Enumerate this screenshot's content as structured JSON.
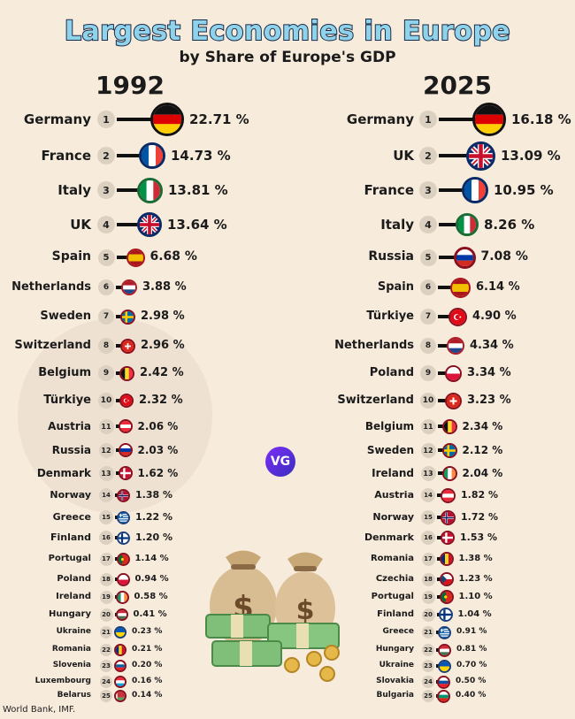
{
  "title": "Largest Economies in Europe",
  "subtitle": "by Share of Europe's GDP",
  "source": "World Bank, IMF.",
  "logo_text": "VG",
  "colors": {
    "title_fill": "#8fd3ea",
    "title_stroke": "#1b2a4a",
    "background": "#f7ebdc",
    "bar": "#111111",
    "rank_badge": "#dcd0c0"
  },
  "chart_data": [
    {
      "type": "bar",
      "title": "1992",
      "unit": "%",
      "rows": [
        {
          "rank": "1",
          "country": "Germany",
          "value": 22.71,
          "label": "22.71 %",
          "flag": "germany"
        },
        {
          "rank": "2",
          "country": "France",
          "value": 14.73,
          "label": "14.73 %",
          "flag": "france"
        },
        {
          "rank": "3",
          "country": "Italy",
          "value": 13.81,
          "label": "13.81 %",
          "flag": "italy"
        },
        {
          "rank": "4",
          "country": "UK",
          "value": 13.64,
          "label": "13.64 %",
          "flag": "uk"
        },
        {
          "rank": "5",
          "country": "Spain",
          "value": 6.68,
          "label": "6.68 %",
          "flag": "spain"
        },
        {
          "rank": "6",
          "country": "Netherlands",
          "value": 3.88,
          "label": "3.88 %",
          "flag": "netherlands"
        },
        {
          "rank": "7",
          "country": "Sweden",
          "value": 2.98,
          "label": "2.98 %",
          "flag": "sweden"
        },
        {
          "rank": "8",
          "country": "Switzerland",
          "value": 2.96,
          "label": "2.96 %",
          "flag": "switzerland"
        },
        {
          "rank": "9",
          "country": "Belgium",
          "value": 2.42,
          "label": "2.42 %",
          "flag": "belgium"
        },
        {
          "rank": "10",
          "country": "Türkiye",
          "value": 2.32,
          "label": "2.32 %",
          "flag": "turkiye"
        },
        {
          "rank": "11",
          "country": "Austria",
          "value": 2.06,
          "label": "2.06 %",
          "flag": "austria"
        },
        {
          "rank": "12",
          "country": "Russia",
          "value": 2.03,
          "label": "2.03 %",
          "flag": "russia"
        },
        {
          "rank": "13",
          "country": "Denmark",
          "value": 1.62,
          "label": "1.62 %",
          "flag": "denmark"
        },
        {
          "rank": "14",
          "country": "Norway",
          "value": 1.38,
          "label": "1.38 %",
          "flag": "norway"
        },
        {
          "rank": "15",
          "country": "Greece",
          "value": 1.22,
          "label": "1.22 %",
          "flag": "greece"
        },
        {
          "rank": "16",
          "country": "Finland",
          "value": 1.2,
          "label": "1.20 %",
          "flag": "finland"
        },
        {
          "rank": "17",
          "country": "Portugal",
          "value": 1.14,
          "label": "1.14 %",
          "flag": "portugal"
        },
        {
          "rank": "18",
          "country": "Poland",
          "value": 0.94,
          "label": "0.94 %",
          "flag": "poland"
        },
        {
          "rank": "19",
          "country": "Ireland",
          "value": 0.58,
          "label": "0.58 %",
          "flag": "ireland"
        },
        {
          "rank": "20",
          "country": "Hungary",
          "value": 0.41,
          "label": "0.41 %",
          "flag": "hungary"
        },
        {
          "rank": "21",
          "country": "Ukraine",
          "value": 0.23,
          "label": "0.23 %",
          "flag": "ukraine"
        },
        {
          "rank": "22",
          "country": "Romania",
          "value": 0.21,
          "label": "0.21 %",
          "flag": "romania"
        },
        {
          "rank": "23",
          "country": "Slovenia",
          "value": 0.2,
          "label": "0.20 %",
          "flag": "slovenia"
        },
        {
          "rank": "24",
          "country": "Luxembourg",
          "value": 0.16,
          "label": "0.16 %",
          "flag": "luxembourg"
        },
        {
          "rank": "25",
          "country": "Belarus",
          "value": 0.14,
          "label": "0.14 %",
          "flag": "belarus"
        }
      ]
    },
    {
      "type": "bar",
      "title": "2025",
      "unit": "%",
      "rows": [
        {
          "rank": "1",
          "country": "Germany",
          "value": 16.18,
          "label": "16.18 %",
          "flag": "germany"
        },
        {
          "rank": "2",
          "country": "UK",
          "value": 13.09,
          "label": "13.09 %",
          "flag": "uk"
        },
        {
          "rank": "3",
          "country": "France",
          "value": 10.95,
          "label": "10.95 %",
          "flag": "france"
        },
        {
          "rank": "4",
          "country": "Italy",
          "value": 8.26,
          "label": "8.26 %",
          "flag": "italy"
        },
        {
          "rank": "5",
          "country": "Russia",
          "value": 7.08,
          "label": "7.08 %",
          "flag": "russia"
        },
        {
          "rank": "6",
          "country": "Spain",
          "value": 6.14,
          "label": "6.14 %",
          "flag": "spain"
        },
        {
          "rank": "7",
          "country": "Türkiye",
          "value": 4.9,
          "label": "4.90 %",
          "flag": "turkiye"
        },
        {
          "rank": "8",
          "country": "Netherlands",
          "value": 4.34,
          "label": "4.34 %",
          "flag": "netherlands"
        },
        {
          "rank": "9",
          "country": "Poland",
          "value": 3.34,
          "label": "3.34 %",
          "flag": "poland"
        },
        {
          "rank": "10",
          "country": "Switzerland",
          "value": 3.23,
          "label": "3.23 %",
          "flag": "switzerland"
        },
        {
          "rank": "11",
          "country": "Belgium",
          "value": 2.34,
          "label": "2.34 %",
          "flag": "belgium"
        },
        {
          "rank": "12",
          "country": "Sweden",
          "value": 2.12,
          "label": "2.12 %",
          "flag": "sweden"
        },
        {
          "rank": "13",
          "country": "Ireland",
          "value": 2.04,
          "label": "2.04 %",
          "flag": "ireland"
        },
        {
          "rank": "14",
          "country": "Austria",
          "value": 1.82,
          "label": "1.82 %",
          "flag": "austria"
        },
        {
          "rank": "15",
          "country": "Norway",
          "value": 1.72,
          "label": "1.72 %",
          "flag": "norway"
        },
        {
          "rank": "16",
          "country": "Denmark",
          "value": 1.53,
          "label": "1.53 %",
          "flag": "denmark"
        },
        {
          "rank": "17",
          "country": "Romania",
          "value": 1.38,
          "label": "1.38 %",
          "flag": "romania"
        },
        {
          "rank": "18",
          "country": "Czechia",
          "value": 1.23,
          "label": "1.23 %",
          "flag": "czechia"
        },
        {
          "rank": "19",
          "country": "Portugal",
          "value": 1.1,
          "label": "1.10 %",
          "flag": "portugal"
        },
        {
          "rank": "20",
          "country": "Finland",
          "value": 1.04,
          "label": "1.04 %",
          "flag": "finland"
        },
        {
          "rank": "21",
          "country": "Greece",
          "value": 0.91,
          "label": "0.91 %",
          "flag": "greece"
        },
        {
          "rank": "22",
          "country": "Hungary",
          "value": 0.81,
          "label": "0.81 %",
          "flag": "hungary"
        },
        {
          "rank": "23",
          "country": "Ukraine",
          "value": 0.7,
          "label": "0.70 %",
          "flag": "ukraine"
        },
        {
          "rank": "24",
          "country": "Slovakia",
          "value": 0.5,
          "label": "0.50 %",
          "flag": "slovakia"
        },
        {
          "rank": "25",
          "country": "Bulgaria",
          "value": 0.4,
          "label": "0.40 %",
          "flag": "bulgaria"
        }
      ]
    }
  ]
}
